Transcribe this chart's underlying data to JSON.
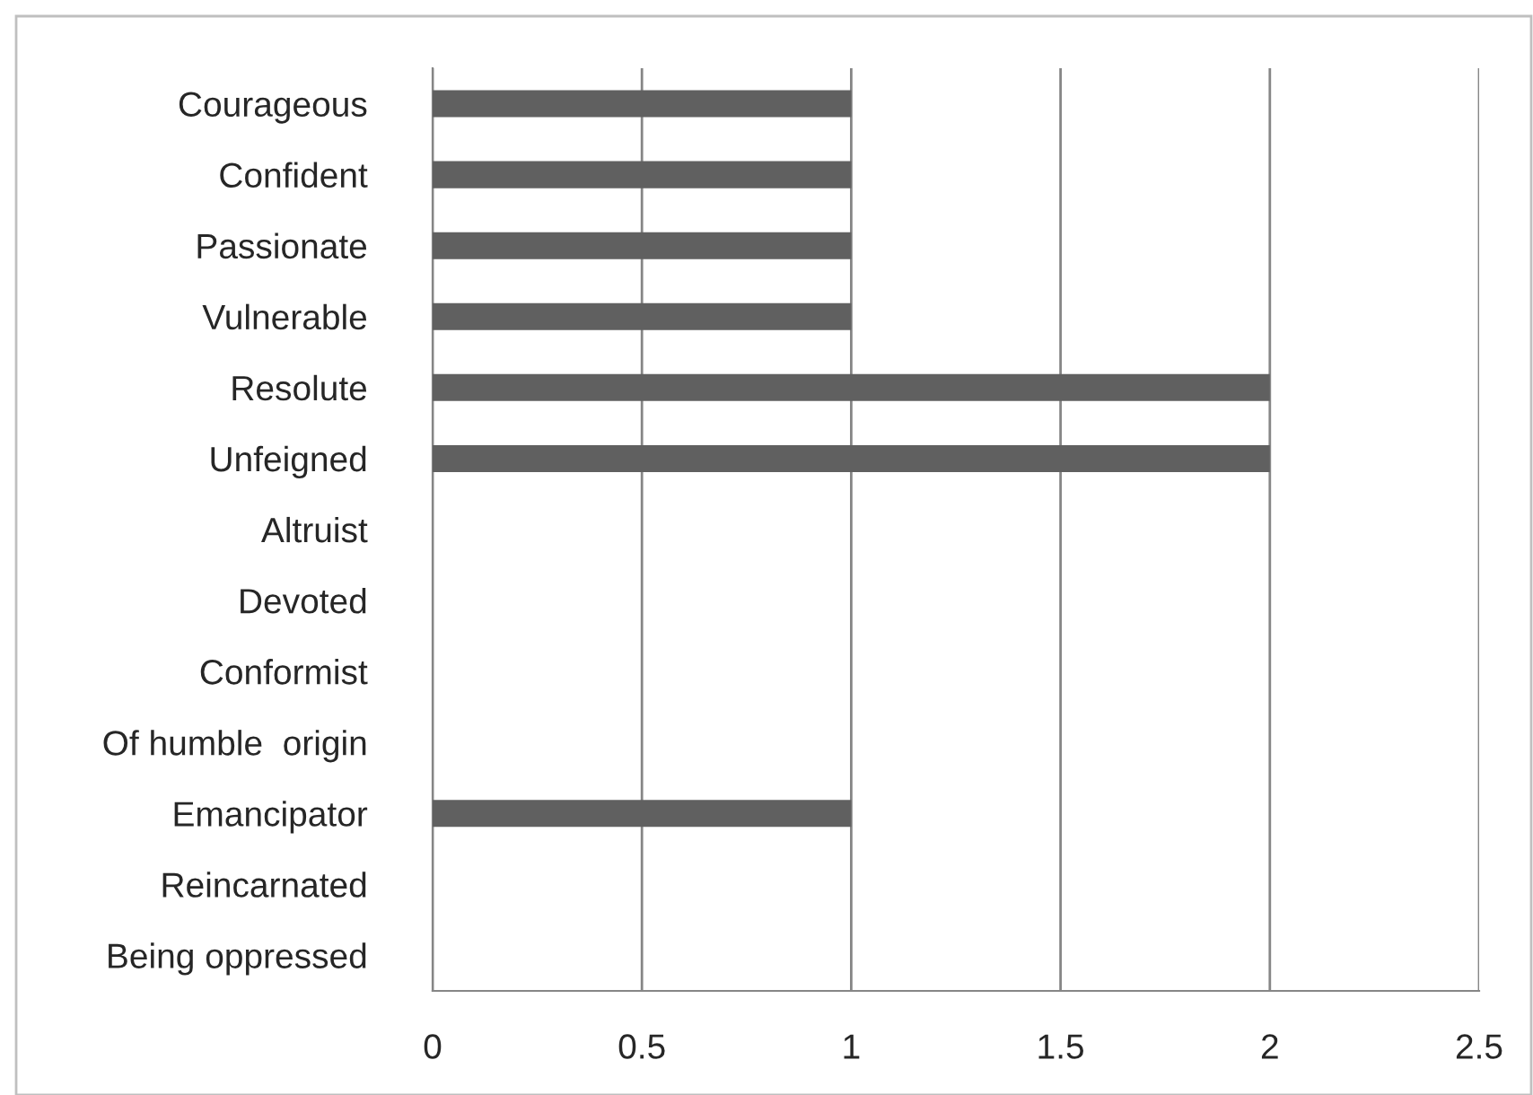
{
  "chart_data": {
    "type": "bar",
    "orientation": "horizontal",
    "categories": [
      "Courageous",
      "Confident",
      "Passionate",
      "Vulnerable",
      "Resolute",
      "Unfeigned",
      "Altruist",
      "Devoted",
      "Conformist",
      "Of humble  origin",
      "Emancipator",
      "Reincarnated",
      "Being oppressed"
    ],
    "values": [
      1,
      1,
      1,
      1,
      2,
      2,
      0,
      0,
      0,
      0,
      1,
      0,
      0
    ],
    "color": "#606060",
    "xlim": [
      0,
      2.5
    ],
    "xticks": [
      0,
      0.5,
      1,
      1.5,
      2,
      2.5
    ],
    "grid": "x",
    "legend": false
  }
}
